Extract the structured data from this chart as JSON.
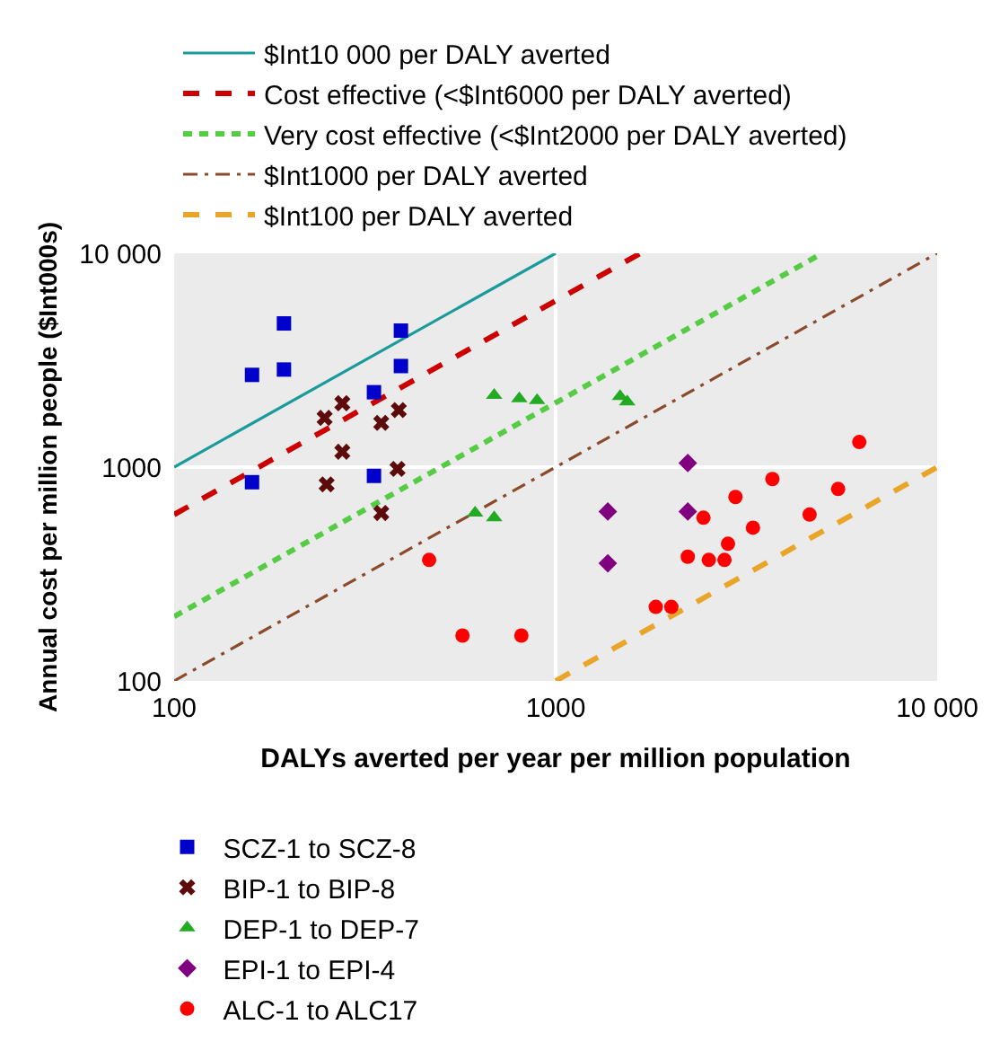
{
  "chart_data": {
    "type": "scatter",
    "xlabel": "DALYs averted per year per million population",
    "ylabel": "Annual cost per million people ($Int000s)",
    "log": "xy",
    "grid": true,
    "legend": "left",
    "xlim": [
      100,
      10000
    ],
    "ylim": [
      100,
      10000
    ],
    "xticks": [
      100,
      1000,
      {
        "value": 10000,
        "label": "10 000"
      }
    ],
    "yticks": [
      100,
      1000,
      {
        "value": 10000,
        "label": "10 000"
      }
    ],
    "series": [
      {
        "name": "$Int10 000 per DALY averted",
        "type": "line",
        "color": "#1a9a9a",
        "line_style": "solid",
        "x": [
          100,
          1000
        ],
        "values": [
          1000,
          10000
        ]
      },
      {
        "name": "Cost effective (<$Int6000 per DALY averted)",
        "type": "line",
        "color": "#cc0000",
        "line_style": "dashed",
        "x": [
          100,
          1667
        ],
        "values": [
          600,
          10000
        ]
      },
      {
        "name": "Very cost effective (<$Int2000 per DALY averted)",
        "type": "line",
        "color": "#55cc44",
        "line_style": "dotted",
        "x": [
          100,
          5000
        ],
        "values": [
          200,
          10000
        ]
      },
      {
        "name": "$Int1000 per DALY averted",
        "type": "line",
        "color": "#8b4a2b",
        "line_style": "dashdot",
        "x": [
          100,
          10000
        ],
        "values": [
          100,
          10000
        ]
      },
      {
        "name": "$Int100 per DALY averted",
        "type": "line",
        "color": "#e8a52a",
        "line_style": "dashed",
        "x": [
          1000,
          10000
        ],
        "values": [
          100,
          1000
        ]
      },
      {
        "name": "SCZ-1 to SCZ-8",
        "color": "#0000cc",
        "marker": "square",
        "x": [
          160,
          194,
          160,
          334,
          393,
          194,
          334,
          393
        ],
        "values": [
          850,
          2860,
          2700,
          910,
          2970,
          4700,
          2240,
          4350
        ]
      },
      {
        "name": "BIP-1 to BIP-8",
        "color": "#5c0a0a",
        "marker": "cross",
        "x": [
          349,
          385,
          251,
          276,
          349,
          248,
          388,
          276
        ],
        "values": [
          610,
          980,
          830,
          1180,
          1610,
          1700,
          1850,
          1990
        ]
      },
      {
        "name": "DEP-1 to DEP-7",
        "color": "#22aa22",
        "marker": "triangle",
        "x": [
          615,
          690,
          690,
          803,
          894,
          1540,
          1475
        ],
        "values": [
          610,
          580,
          2170,
          2090,
          2050,
          2020,
          2140
        ]
      },
      {
        "name": "EPI-1 to EPI-4",
        "color": "#800080",
        "marker": "diamond",
        "x": [
          1370,
          2220,
          1370,
          2220
        ],
        "values": [
          355,
          620,
          620,
          1045
        ]
      },
      {
        "name": "ALC-1 to ALC17",
        "color": "#ff0000",
        "marker": "circle",
        "x": [
          2440,
          3700,
          5500,
          2220,
          2830,
          813,
          570,
          466,
          4630,
          2770,
          2520,
          6250,
          2960,
          3290,
          1830,
          2010
        ],
        "values": [
          580,
          880,
          790,
          381,
          438,
          163,
          163,
          368,
          600,
          368,
          368,
          1310,
          725,
          521,
          222,
          222
        ]
      }
    ]
  }
}
